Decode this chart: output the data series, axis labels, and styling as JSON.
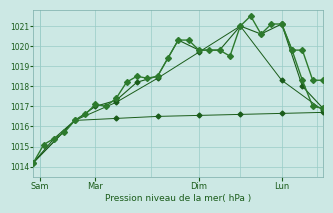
{
  "xlabel": "Pression niveau de la mer( hPa )",
  "ylim": [
    1013.5,
    1021.8
  ],
  "yticks": [
    1014,
    1015,
    1016,
    1017,
    1018,
    1019,
    1020,
    1021
  ],
  "bg_color": "#cce8e4",
  "grid_color": "#99ccc7",
  "line_color_dark": "#1a5c1a",
  "line_color_med": "#2d7a2d",
  "text_color": "#1a5c1a",
  "xlim": [
    0,
    7
  ],
  "xtick_positions": [
    0.15,
    1.5,
    4.0,
    6.0
  ],
  "xtick_labels": [
    "Sam",
    "Mar",
    "Dim",
    "Lun"
  ],
  "vline_positions": [
    0.15,
    2.85,
    5.0,
    6.85
  ],
  "series_main_x": [
    0.0,
    0.25,
    0.5,
    0.75,
    1.0,
    1.25,
    1.5,
    1.75,
    2.0,
    2.25,
    2.5,
    2.75,
    3.0,
    3.25,
    3.5,
    3.75,
    4.0,
    4.25,
    4.5,
    4.75,
    5.0,
    5.25,
    5.5,
    5.75,
    6.0,
    6.25,
    6.5,
    6.75,
    7.0
  ],
  "series_main_y": [
    1014.2,
    1015.1,
    1015.4,
    1015.7,
    1016.3,
    1016.6,
    1017.1,
    1017.0,
    1017.4,
    1018.2,
    1018.5,
    1018.4,
    1018.5,
    1019.4,
    1020.3,
    1020.3,
    1019.8,
    1019.8,
    1019.8,
    1019.5,
    1021.0,
    1021.5,
    1020.6,
    1021.1,
    1021.1,
    1019.8,
    1019.8,
    1018.3,
    1018.3
  ],
  "series2_x": [
    0.0,
    0.5,
    1.0,
    1.5,
    2.0,
    2.5,
    3.0,
    3.5,
    4.0,
    4.5,
    5.0,
    5.5,
    6.0,
    6.5,
    7.0
  ],
  "series2_y": [
    1014.2,
    1015.4,
    1016.3,
    1017.0,
    1017.3,
    1018.2,
    1018.5,
    1020.3,
    1019.8,
    1019.8,
    1021.0,
    1020.6,
    1021.1,
    1018.0,
    1016.9
  ],
  "series_flat_x": [
    0.0,
    1.0,
    2.0,
    3.0,
    4.0,
    5.0,
    6.0,
    7.0
  ],
  "series_flat_y": [
    1014.2,
    1016.3,
    1016.4,
    1016.5,
    1016.55,
    1016.6,
    1016.65,
    1016.7
  ],
  "series_diag_x": [
    0.0,
    1.0,
    2.0,
    3.0,
    4.0,
    5.0,
    6.0,
    7.0
  ],
  "series_diag_y": [
    1014.2,
    1016.3,
    1017.2,
    1018.4,
    1019.7,
    1021.0,
    1018.3,
    1016.8
  ],
  "series_end_x": [
    6.0,
    6.25,
    6.5,
    6.75,
    7.0
  ],
  "series_end_y": [
    1021.1,
    1019.8,
    1018.3,
    1017.0,
    1016.9
  ]
}
